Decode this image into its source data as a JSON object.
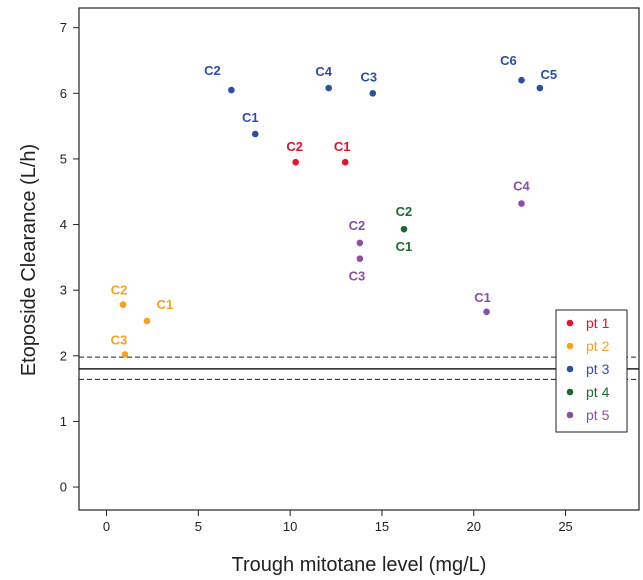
{
  "chart_data": {
    "type": "scatter",
    "title": "",
    "xlabel": "Trough mitotane level (mg/L)",
    "ylabel": "Etoposide Clearance (L/h)",
    "xlim": [
      -1.5,
      29
    ],
    "ylim": [
      -0.35,
      7.3
    ],
    "xticks": [
      0,
      5,
      10,
      15,
      20,
      25
    ],
    "yticks": [
      0,
      1,
      2,
      3,
      4,
      5,
      6,
      7
    ],
    "grid": false,
    "legend_position": "bottom-right",
    "reference_lines": [
      {
        "y": 1.8,
        "style": "solid"
      },
      {
        "y": 1.98,
        "style": "dashed"
      },
      {
        "y": 1.64,
        "style": "dashed"
      }
    ],
    "series": [
      {
        "name": "pt 1",
        "color": "#e8112d",
        "points": [
          {
            "x": 10.3,
            "y": 4.95,
            "label": "C2"
          },
          {
            "x": 13.0,
            "y": 4.95,
            "label": "C1"
          }
        ]
      },
      {
        "name": "pt 2",
        "color": "#f7a11a",
        "points": [
          {
            "x": 0.9,
            "y": 2.78,
            "label": "C2"
          },
          {
            "x": 2.2,
            "y": 2.53,
            "label": "C1"
          },
          {
            "x": 1.0,
            "y": 2.02,
            "label": "C3"
          }
        ]
      },
      {
        "name": "pt 3",
        "color": "#2b4fa3",
        "points": [
          {
            "x": 6.8,
            "y": 6.05,
            "label": "C2"
          },
          {
            "x": 8.1,
            "y": 5.38,
            "label": "C1"
          },
          {
            "x": 12.1,
            "y": 6.08,
            "label": "C4"
          },
          {
            "x": 14.5,
            "y": 6.0,
            "label": "C3"
          },
          {
            "x": 22.6,
            "y": 6.2,
            "label": "C6"
          },
          {
            "x": 23.6,
            "y": 6.08,
            "label": "C5"
          }
        ]
      },
      {
        "name": "pt 4",
        "color": "#1a6b32",
        "points": [
          {
            "x": 16.2,
            "y": 3.93,
            "label": "C2/C1"
          }
        ]
      },
      {
        "name": "pt 5",
        "color": "#8a4fa8",
        "points": [
          {
            "x": 13.8,
            "y": 3.72,
            "label": "C2"
          },
          {
            "x": 13.8,
            "y": 3.48,
            "label": "C3"
          },
          {
            "x": 22.6,
            "y": 4.32,
            "label": "C4"
          },
          {
            "x": 20.7,
            "y": 2.67,
            "label": "C1"
          }
        ]
      }
    ],
    "point_labels": [
      {
        "text": "C2",
        "color": "#e8112d"
      },
      {
        "text": "C1",
        "color": "#e8112d"
      },
      {
        "text": "C2",
        "color": "#f7a11a"
      },
      {
        "text": "C1",
        "color": "#f7a11a"
      },
      {
        "text": "C3",
        "color": "#f7a11a"
      },
      {
        "text": "C2",
        "color": "#2b4fa3"
      },
      {
        "text": "C1",
        "color": "#2b4fa3"
      },
      {
        "text": "C4",
        "color": "#2b4fa3"
      },
      {
        "text": "C3",
        "color": "#2b4fa3"
      },
      {
        "text": "C6",
        "color": "#2b4fa3"
      },
      {
        "text": "C5",
        "color": "#2b4fa3"
      },
      {
        "text": "C2",
        "color": "#1a6b32"
      },
      {
        "text": "C1",
        "color": "#1a6b32"
      },
      {
        "text": "C2",
        "color": "#8a4fa8"
      },
      {
        "text": "C3",
        "color": "#8a4fa8"
      },
      {
        "text": "C4",
        "color": "#8a4fa8"
      },
      {
        "text": "C1",
        "color": "#8a4fa8"
      }
    ]
  }
}
